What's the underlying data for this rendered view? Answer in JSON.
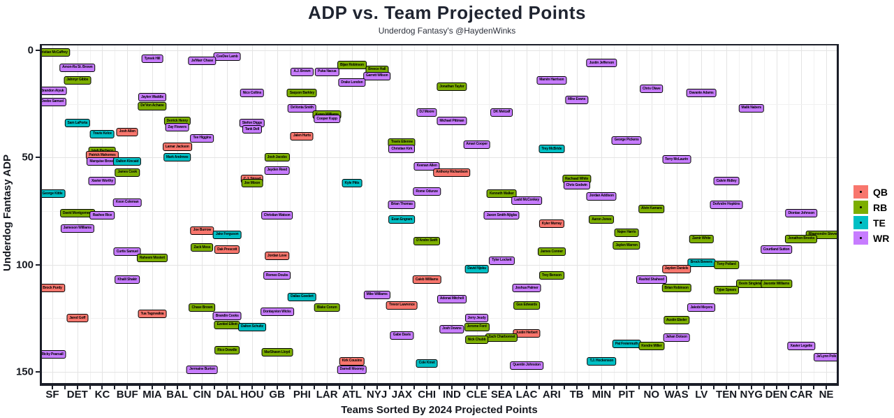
{
  "title": "ADP vs. Team Projected Points",
  "subtitle": "Underdog Fantasy's @HaydenWinks",
  "y_axis": {
    "label": "Underdog Fantasy ADP",
    "ticks": [
      0,
      50,
      100,
      150
    ],
    "min": 0,
    "max": 150,
    "inverted": true
  },
  "x_axis": {
    "label": "Teams Sorted By 2024 Projected Points"
  },
  "legend": {
    "items": [
      {
        "label": "QB",
        "color": "#F8766D"
      },
      {
        "label": "RB",
        "color": "#7CAE00"
      },
      {
        "label": "TE",
        "color": "#00BFC4"
      },
      {
        "label": "WR",
        "color": "#C77CFF"
      }
    ]
  },
  "position_colors": {
    "QB": "#F8766D",
    "RB": "#7CAE00",
    "TE": "#00BFC4",
    "WR": "#C77CFF"
  },
  "chart_data": {
    "type": "scatter",
    "x_categories": [
      "SF",
      "DET",
      "KC",
      "BUF",
      "MIA",
      "BAL",
      "CIN",
      "DAL",
      "HOU",
      "GB",
      "PHI",
      "LAR",
      "ATL",
      "NYJ",
      "JAX",
      "CHI",
      "IND",
      "CLE",
      "SEA",
      "LAC",
      "ARI",
      "TB",
      "MIN",
      "PIT",
      "NO",
      "WAS",
      "LV",
      "TEN",
      "NYG",
      "DEN",
      "CAR",
      "NE"
    ],
    "points": [
      {
        "team": "SF",
        "player": "Christian McCaffrey",
        "position": "RB",
        "adp": 1
      },
      {
        "team": "SF",
        "player": "Brandon Aiyuk",
        "position": "WR",
        "adp": 19
      },
      {
        "team": "SF",
        "player": "Deebo Samuel",
        "position": "WR",
        "adp": 24
      },
      {
        "team": "SF",
        "player": "George Kittle",
        "position": "TE",
        "adp": 67
      },
      {
        "team": "SF",
        "player": "Brock Purdy",
        "position": "QB",
        "adp": 111
      },
      {
        "team": "SF",
        "player": "Ricky Pearsall",
        "position": "WR",
        "adp": 142
      },
      {
        "team": "DET",
        "player": "Amon-Ra St. Brown",
        "position": "WR",
        "adp": 8
      },
      {
        "team": "DET",
        "player": "Jahmyr Gibbs",
        "position": "RB",
        "adp": 14
      },
      {
        "team": "DET",
        "player": "Sam LaPorta",
        "position": "TE",
        "adp": 34
      },
      {
        "team": "DET",
        "player": "David Montgomery",
        "position": "RB",
        "adp": 76
      },
      {
        "team": "DET",
        "player": "Jameson Williams",
        "position": "WR",
        "adp": 83
      },
      {
        "team": "DET",
        "player": "Jared Goff",
        "position": "QB",
        "adp": 125
      },
      {
        "team": "KC",
        "player": "Travis Kelce",
        "position": "TE",
        "adp": 39
      },
      {
        "team": "KC",
        "player": "Isiah Pacheco",
        "position": "RB",
        "adp": 47
      },
      {
        "team": "KC",
        "player": "Patrick Mahomes",
        "position": "QB",
        "adp": 49
      },
      {
        "team": "KC",
        "player": "Marquise Brown",
        "position": "WR",
        "adp": 52
      },
      {
        "team": "KC",
        "player": "Xavier Worthy",
        "position": "WR",
        "adp": 61
      },
      {
        "team": "KC",
        "player": "Rashee Rice",
        "position": "WR",
        "adp": 77
      },
      {
        "team": "BUF",
        "player": "Josh Allen",
        "position": "QB",
        "adp": 38
      },
      {
        "team": "BUF",
        "player": "Dalton Kincaid",
        "position": "TE",
        "adp": 52
      },
      {
        "team": "BUF",
        "player": "James Cook",
        "position": "RB",
        "adp": 57
      },
      {
        "team": "BUF",
        "player": "Keon Coleman",
        "position": "WR",
        "adp": 71
      },
      {
        "team": "BUF",
        "player": "Curtis Samuel",
        "position": "WR",
        "adp": 94
      },
      {
        "team": "BUF",
        "player": "Khalil Shakir",
        "position": "WR",
        "adp": 107
      },
      {
        "team": "MIA",
        "player": "Tyreek Hill",
        "position": "WR",
        "adp": 4
      },
      {
        "team": "MIA",
        "player": "Jaylen Waddle",
        "position": "WR",
        "adp": 22
      },
      {
        "team": "MIA",
        "player": "De'Von Achane",
        "position": "RB",
        "adp": 26
      },
      {
        "team": "MIA",
        "player": "Raheem Mostert",
        "position": "RB",
        "adp": 97
      },
      {
        "team": "MIA",
        "player": "Tua Tagovailoa",
        "position": "QB",
        "adp": 123
      },
      {
        "team": "BAL",
        "player": "Derrick Henry",
        "position": "RB",
        "adp": 33
      },
      {
        "team": "BAL",
        "player": "Zay Flowers",
        "position": "WR",
        "adp": 36
      },
      {
        "team": "BAL",
        "player": "Lamar Jackson",
        "position": "QB",
        "adp": 45
      },
      {
        "team": "BAL",
        "player": "Mark Andrews",
        "position": "TE",
        "adp": 50
      },
      {
        "team": "CIN",
        "player": "Ja'Marr Chase",
        "position": "WR",
        "adp": 5
      },
      {
        "team": "CIN",
        "player": "Tee Higgins",
        "position": "WR",
        "adp": 41
      },
      {
        "team": "CIN",
        "player": "Joe Burrow",
        "position": "QB",
        "adp": 84
      },
      {
        "team": "CIN",
        "player": "Zack Moss",
        "position": "RB",
        "adp": 92
      },
      {
        "team": "CIN",
        "player": "Chase Brown",
        "position": "RB",
        "adp": 120
      },
      {
        "team": "CIN",
        "player": "Jermaine Burton",
        "position": "WR",
        "adp": 149
      },
      {
        "team": "DAL",
        "player": "CeeDee Lamb",
        "position": "WR",
        "adp": 3
      },
      {
        "team": "DAL",
        "player": "Jake Ferguson",
        "position": "TE",
        "adp": 86
      },
      {
        "team": "DAL",
        "player": "Dak Prescott",
        "position": "QB",
        "adp": 93
      },
      {
        "team": "DAL",
        "player": "Brandin Cooks",
        "position": "WR",
        "adp": 124
      },
      {
        "team": "DAL",
        "player": "Ezekiel Elliott",
        "position": "RB",
        "adp": 128
      },
      {
        "team": "DAL",
        "player": "Rico Dowdle",
        "position": "RB",
        "adp": 140
      },
      {
        "team": "HOU",
        "player": "Nico Collins",
        "position": "WR",
        "adp": 20
      },
      {
        "team": "HOU",
        "player": "Stefon Diggs",
        "position": "WR",
        "adp": 34
      },
      {
        "team": "HOU",
        "player": "Tank Dell",
        "position": "WR",
        "adp": 37
      },
      {
        "team": "HOU",
        "player": "C.J. Stroud",
        "position": "QB",
        "adp": 60
      },
      {
        "team": "HOU",
        "player": "Joe Mixon",
        "position": "RB",
        "adp": 62
      },
      {
        "team": "HOU",
        "player": "Dalton Schultz",
        "position": "TE",
        "adp": 129
      },
      {
        "team": "GB",
        "player": "Josh Jacobs",
        "position": "RB",
        "adp": 50
      },
      {
        "team": "GB",
        "player": "Jayden Reed",
        "position": "WR",
        "adp": 56
      },
      {
        "team": "GB",
        "player": "Christian Watson",
        "position": "WR",
        "adp": 77
      },
      {
        "team": "GB",
        "player": "Jordan Love",
        "position": "QB",
        "adp": 96
      },
      {
        "team": "GB",
        "player": "Romeo Doubs",
        "position": "WR",
        "adp": 105
      },
      {
        "team": "GB",
        "player": "Dontayvion Wicks",
        "position": "WR",
        "adp": 122
      },
      {
        "team": "GB",
        "player": "MarShawn Lloyd",
        "position": "RB",
        "adp": 141
      },
      {
        "team": "PHI",
        "player": "A.J. Brown",
        "position": "WR",
        "adp": 10
      },
      {
        "team": "PHI",
        "player": "Saquon Barkley",
        "position": "RB",
        "adp": 20
      },
      {
        "team": "PHI",
        "player": "DeVonta Smith",
        "position": "WR",
        "adp": 27
      },
      {
        "team": "PHI",
        "player": "Jalen Hurts",
        "position": "QB",
        "adp": 40
      },
      {
        "team": "PHI",
        "player": "Dallas Goedert",
        "position": "TE",
        "adp": 115
      },
      {
        "team": "LAR",
        "player": "Puka Nacua",
        "position": "WR",
        "adp": 10
      },
      {
        "team": "LAR",
        "player": "Kyren Williams",
        "position": "RB",
        "adp": 30
      },
      {
        "team": "LAR",
        "player": "Cooper Kupp",
        "position": "WR",
        "adp": 32
      },
      {
        "team": "LAR",
        "player": "Blake Corum",
        "position": "RB",
        "adp": 120
      },
      {
        "team": "ATL",
        "player": "Bijan Robinson",
        "position": "RB",
        "adp": 7
      },
      {
        "team": "ATL",
        "player": "Drake London",
        "position": "WR",
        "adp": 15
      },
      {
        "team": "ATL",
        "player": "Kyle Pitts",
        "position": "TE",
        "adp": 62
      },
      {
        "team": "ATL",
        "player": "Kirk Cousins",
        "position": "QB",
        "adp": 145
      },
      {
        "team": "ATL",
        "player": "Darnell Mooney",
        "position": "WR",
        "adp": 149
      },
      {
        "team": "NYJ",
        "player": "Breece Hall",
        "position": "RB",
        "adp": 9
      },
      {
        "team": "NYJ",
        "player": "Garrett Wilson",
        "position": "WR",
        "adp": 12
      },
      {
        "team": "NYJ",
        "player": "Mike Williams",
        "position": "WR",
        "adp": 114
      },
      {
        "team": "JAX",
        "player": "Travis Etienne",
        "position": "RB",
        "adp": 43
      },
      {
        "team": "JAX",
        "player": "Christian Kirk",
        "position": "WR",
        "adp": 46
      },
      {
        "team": "JAX",
        "player": "Brian Thomas",
        "position": "WR",
        "adp": 72
      },
      {
        "team": "JAX",
        "player": "Evan Engram",
        "position": "TE",
        "adp": 79
      },
      {
        "team": "JAX",
        "player": "Trevor Lawrence",
        "position": "QB",
        "adp": 119
      },
      {
        "team": "JAX",
        "player": "Gabe Davis",
        "position": "WR",
        "adp": 133
      },
      {
        "team": "CHI",
        "player": "DJ Moore",
        "position": "WR",
        "adp": 29
      },
      {
        "team": "CHI",
        "player": "Keenan Allen",
        "position": "WR",
        "adp": 54
      },
      {
        "team": "CHI",
        "player": "Rome Odunze",
        "position": "WR",
        "adp": 66
      },
      {
        "team": "CHI",
        "player": "D'Andre Swift",
        "position": "RB",
        "adp": 89
      },
      {
        "team": "CHI",
        "player": "Caleb Williams",
        "position": "QB",
        "adp": 107
      },
      {
        "team": "CHI",
        "player": "Cole Kmet",
        "position": "TE",
        "adp": 146
      },
      {
        "team": "IND",
        "player": "Jonathan Taylor",
        "position": "RB",
        "adp": 17
      },
      {
        "team": "IND",
        "player": "Michael Pittman",
        "position": "WR",
        "adp": 33
      },
      {
        "team": "IND",
        "player": "Anthony Richardson",
        "position": "QB",
        "adp": 57
      },
      {
        "team": "IND",
        "player": "Adonai Mitchell",
        "position": "WR",
        "adp": 116
      },
      {
        "team": "IND",
        "player": "Josh Downs",
        "position": "WR",
        "adp": 130
      },
      {
        "team": "CLE",
        "player": "Amari Cooper",
        "position": "WR",
        "adp": 44
      },
      {
        "team": "CLE",
        "player": "David Njoku",
        "position": "TE",
        "adp": 102
      },
      {
        "team": "CLE",
        "player": "Jerry Jeudy",
        "position": "WR",
        "adp": 125
      },
      {
        "team": "CLE",
        "player": "Jerome Ford",
        "position": "RB",
        "adp": 129
      },
      {
        "team": "CLE",
        "player": "Nick Chubb",
        "position": "RB",
        "adp": 135
      },
      {
        "team": "SEA",
        "player": "DK Metcalf",
        "position": "WR",
        "adp": 29
      },
      {
        "team": "SEA",
        "player": "Kenneth Walker",
        "position": "RB",
        "adp": 67
      },
      {
        "team": "SEA",
        "player": "Jaxon Smith-Njigba",
        "position": "WR",
        "adp": 77
      },
      {
        "team": "SEA",
        "player": "Tyler Lockett",
        "position": "WR",
        "adp": 98
      },
      {
        "team": "SEA",
        "player": "Zach Charbonnet",
        "position": "RB",
        "adp": 134
      },
      {
        "team": "LAC",
        "player": "Ladd McConkey",
        "position": "WR",
        "adp": 70
      },
      {
        "team": "LAC",
        "player": "Joshua Palmer",
        "position": "WR",
        "adp": 111
      },
      {
        "team": "LAC",
        "player": "Gus Edwards",
        "position": "RB",
        "adp": 119
      },
      {
        "team": "LAC",
        "player": "Justin Herbert",
        "position": "QB",
        "adp": 132
      },
      {
        "team": "LAC",
        "player": "Quentin Johnston",
        "position": "WR",
        "adp": 147
      },
      {
        "team": "ARI",
        "player": "Marvin Harrison",
        "position": "WR",
        "adp": 14
      },
      {
        "team": "ARI",
        "player": "Trey McBride",
        "position": "TE",
        "adp": 46
      },
      {
        "team": "ARI",
        "player": "Kyler Murray",
        "position": "QB",
        "adp": 81
      },
      {
        "team": "ARI",
        "player": "James Conner",
        "position": "RB",
        "adp": 94
      },
      {
        "team": "ARI",
        "player": "Trey Benson",
        "position": "RB",
        "adp": 105
      },
      {
        "team": "TB",
        "player": "Mike Evans",
        "position": "WR",
        "adp": 23
      },
      {
        "team": "TB",
        "player": "Rachaad White",
        "position": "RB",
        "adp": 60
      },
      {
        "team": "TB",
        "player": "Chris Godwin",
        "position": "WR",
        "adp": 63
      },
      {
        "team": "MIN",
        "player": "Justin Jefferson",
        "position": "WR",
        "adp": 6
      },
      {
        "team": "MIN",
        "player": "Jordan Addison",
        "position": "WR",
        "adp": 68
      },
      {
        "team": "MIN",
        "player": "Aaron Jones",
        "position": "RB",
        "adp": 79
      },
      {
        "team": "MIN",
        "player": "T.J. Hockenson",
        "position": "TE",
        "adp": 145
      },
      {
        "team": "PIT",
        "player": "George Pickens",
        "position": "WR",
        "adp": 42
      },
      {
        "team": "PIT",
        "player": "Najee Harris",
        "position": "RB",
        "adp": 85
      },
      {
        "team": "PIT",
        "player": "Jaylen Warren",
        "position": "RB",
        "adp": 91
      },
      {
        "team": "PIT",
        "player": "Pat Freiermuth",
        "position": "TE",
        "adp": 137
      },
      {
        "team": "NO",
        "player": "Chris Olave",
        "position": "WR",
        "adp": 18
      },
      {
        "team": "NO",
        "player": "Alvin Kamara",
        "position": "RB",
        "adp": 74
      },
      {
        "team": "NO",
        "player": "Rashid Shaheed",
        "position": "WR",
        "adp": 107
      },
      {
        "team": "NO",
        "player": "Kendre Miller",
        "position": "RB",
        "adp": 138
      },
      {
        "team": "WAS",
        "player": "Terry McLaurin",
        "position": "WR",
        "adp": 51
      },
      {
        "team": "WAS",
        "player": "Jayden Daniels",
        "position": "QB",
        "adp": 102
      },
      {
        "team": "WAS",
        "player": "Brian Robinson",
        "position": "RB",
        "adp": 111
      },
      {
        "team": "WAS",
        "player": "Austin Ekeler",
        "position": "RB",
        "adp": 126
      },
      {
        "team": "WAS",
        "player": "Jahan Dotson",
        "position": "WR",
        "adp": 134
      },
      {
        "team": "LV",
        "player": "Davante Adams",
        "position": "WR",
        "adp": 20
      },
      {
        "team": "LV",
        "player": "Zamir White",
        "position": "RB",
        "adp": 88
      },
      {
        "team": "LV",
        "player": "Brock Bowers",
        "position": "TE",
        "adp": 99
      },
      {
        "team": "LV",
        "player": "Jakobi Meyers",
        "position": "WR",
        "adp": 120
      },
      {
        "team": "TEN",
        "player": "Calvin Ridley",
        "position": "WR",
        "adp": 61
      },
      {
        "team": "TEN",
        "player": "DeAndre Hopkins",
        "position": "WR",
        "adp": 72
      },
      {
        "team": "TEN",
        "player": "Tony Pollard",
        "position": "RB",
        "adp": 100
      },
      {
        "team": "TEN",
        "player": "Tyjae Spears",
        "position": "RB",
        "adp": 112
      },
      {
        "team": "NYG",
        "player": "Malik Nabers",
        "position": "WR",
        "adp": 27
      },
      {
        "team": "NYG",
        "player": "Devin Singletary",
        "position": "RB",
        "adp": 109
      },
      {
        "team": "DEN",
        "player": "Courtland Sutton",
        "position": "WR",
        "adp": 93
      },
      {
        "team": "DEN",
        "player": "Javonte Williams",
        "position": "RB",
        "adp": 109
      },
      {
        "team": "CAR",
        "player": "Diontae Johnson",
        "position": "WR",
        "adp": 76
      },
      {
        "team": "CAR",
        "player": "Jonathon Brooks",
        "position": "RB",
        "adp": 88
      },
      {
        "team": "CAR",
        "player": "Xavier Legette",
        "position": "WR",
        "adp": 138
      },
      {
        "team": "NE",
        "player": "Rhamondre Stevenson",
        "position": "RB",
        "adp": 86
      },
      {
        "team": "NE",
        "player": "Ja'Lynn Polk",
        "position": "WR",
        "adp": 143
      }
    ]
  }
}
